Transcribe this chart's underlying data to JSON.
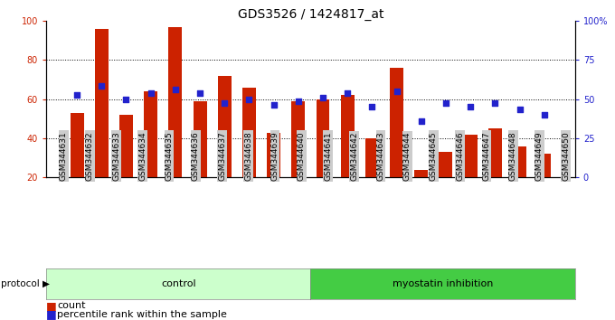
{
  "title": "GDS3526 / 1424817_at",
  "samples": [
    "GSM344631",
    "GSM344632",
    "GSM344633",
    "GSM344634",
    "GSM344635",
    "GSM344636",
    "GSM344637",
    "GSM344638",
    "GSM344639",
    "GSM344640",
    "GSM344641",
    "GSM344642",
    "GSM344643",
    "GSM344644",
    "GSM344645",
    "GSM344646",
    "GSM344647",
    "GSM344648",
    "GSM344649",
    "GSM344650"
  ],
  "bar_values": [
    53,
    96,
    52,
    64,
    97,
    59,
    72,
    66,
    43,
    59,
    60,
    62,
    40,
    76,
    24,
    33,
    42,
    45,
    36,
    32
  ],
  "dot_values": [
    62,
    67,
    60,
    63,
    65,
    63,
    58,
    60,
    57,
    59,
    61,
    63,
    56,
    64,
    49,
    58,
    56,
    58,
    55,
    52
  ],
  "control_count": 10,
  "bar_color": "#cc2200",
  "dot_color": "#2222cc",
  "bar_bottom": 20,
  "ylim_left": [
    20,
    100
  ],
  "ylim_right": [
    0,
    100
  ],
  "yticks_left": [
    20,
    40,
    60,
    80,
    100
  ],
  "yticks_right": [
    0,
    25,
    50,
    75,
    100
  ],
  "ytick_labels_right": [
    "0",
    "25",
    "50",
    "75",
    "100%"
  ],
  "grid_values": [
    40,
    60,
    80
  ],
  "control_label": "control",
  "inhibition_label": "myostatin inhibition",
  "protocol_label": "protocol",
  "legend_count": "count",
  "legend_percentile": "percentile rank within the sample",
  "bg_color": "#ffffff",
  "plot_bg": "#ffffff",
  "control_bg": "#ccffcc",
  "inhibition_bg": "#44cc44",
  "xticklabel_bg": "#cccccc",
  "title_fontsize": 10,
  "tick_fontsize": 7,
  "legend_fontsize": 8
}
